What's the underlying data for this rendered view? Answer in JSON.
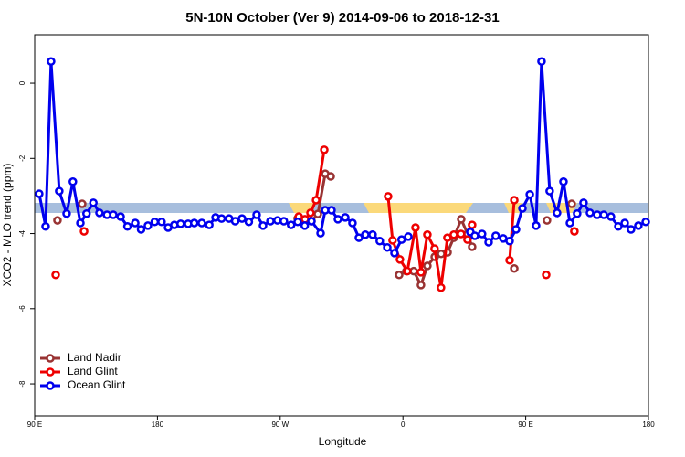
{
  "chart_data": {
    "type": "line",
    "title": "5N-10N October (Ver 9)   2014-09-06 to 2018-12-31",
    "x_label": "Longitude",
    "y_label": "XCO2 - MLO trend (ppm)",
    "xlim": [
      90,
      540
    ],
    "ylim": [
      -8.85,
      1.29
    ],
    "xticks": [
      {
        "value": 90,
        "label": "90 E"
      },
      180,
      {
        "value": 270,
        "label": "90 W"
      },
      {
        "value": 360,
        "label": "0"
      },
      {
        "value": 450,
        "label": "90 E"
      },
      {
        "value": 540,
        "label": "180"
      }
    ],
    "yticks": [
      -8,
      -6,
      -4,
      -2,
      0
    ],
    "legend": "bottomleft",
    "series": [
      {
        "name": "Land Nadir",
        "color": "#993333",
        "x": [
          106.7,
          null,
          124.8,
          null,
          282.8,
          287.5,
          292.9,
          297.6,
          303,
          307,
          null,
          357.2,
          362.5,
          367.9,
          373.2,
          377.9,
          383.3,
          388,
          392.7,
          397.3,
          402.7,
          407.4,
          410.7,
          null,
          441.6,
          null,
          465.6,
          null,
          483.7
        ],
        "values": [
          -3.65,
          null,
          -3.21,
          null,
          -3.6,
          -3.74,
          -3.67,
          -3.48,
          -2.41,
          -2.48,
          null,
          -5.1,
          -5.0,
          -5.0,
          -5.37,
          -4.86,
          -4.62,
          -4.54,
          -4.5,
          -4.11,
          -3.62,
          -4.01,
          -4.35,
          null,
          -4.93,
          null,
          -3.65,
          null,
          -3.21
        ]
      },
      {
        "name": "Land Glint",
        "color": "#ee0000",
        "x": [
          105.4,
          null,
          126.2,
          null,
          283.6,
          288.2,
          292.2,
          296.3,
          302.3,
          null,
          349.1,
          352.4,
          357.8,
          363.2,
          369.2,
          373.2,
          377.9,
          383.2,
          387.9,
          392.6,
          397.3,
          402.6,
          407.3,
          410.7,
          null,
          438.2,
          441.6,
          null,
          465,
          null,
          485.7
        ],
        "values": [
          -5.1,
          null,
          -3.94,
          null,
          -3.55,
          -3.62,
          -3.45,
          -3.11,
          -1.77,
          null,
          -3.01,
          -4.18,
          -4.69,
          -5.0,
          -3.84,
          -5.03,
          -4.03,
          -4.4,
          -5.44,
          -4.11,
          -4.03,
          -4.01,
          -4.16,
          -3.77,
          null,
          -4.71,
          -3.11,
          null,
          -5.1,
          null,
          -3.94
        ]
      },
      {
        "name": "Ocean Glint",
        "color": "#0000ee",
        "x": [
          93.3,
          98,
          102,
          108,
          113.4,
          118,
          123.5,
          128,
          133,
          137.5,
          143,
          147.6,
          153,
          158,
          163.7,
          168,
          173,
          178,
          183,
          187.8,
          192.4,
          197,
          202.5,
          207,
          212.5,
          218,
          222.6,
          227,
          232.5,
          237,
          242,
          247,
          252.7,
          257.4,
          262.8,
          268,
          272.7,
          278,
          282.8,
          288,
          292.9,
          299.6,
          303,
          307.6,
          312.3,
          317.7,
          323,
          327.7,
          332.4,
          337.7,
          343,
          348.5,
          353.8,
          359,
          363.9,
          null,
          409.4,
          412.7,
          418,
          422.8,
          428,
          433.5,
          438.2,
          442.9,
          447.6,
          453,
          457.6,
          461.6,
          467.6,
          473,
          477.7,
          482.4,
          487.7,
          492.4,
          497.1,
          502.5,
          507.2,
          512.5,
          517.9,
          522.6,
          527.2,
          532.6,
          538
        ],
        "values": [
          -2.94,
          -3.81,
          0.58,
          -2.87,
          -3.47,
          -2.62,
          -3.72,
          -3.47,
          -3.18,
          -3.45,
          -3.5,
          -3.5,
          -3.55,
          -3.81,
          -3.72,
          -3.89,
          -3.79,
          -3.69,
          -3.69,
          -3.84,
          -3.77,
          -3.74,
          -3.74,
          -3.72,
          -3.72,
          -3.77,
          -3.57,
          -3.6,
          -3.6,
          -3.67,
          -3.6,
          -3.69,
          -3.5,
          -3.79,
          -3.67,
          -3.65,
          -3.67,
          -3.77,
          -3.69,
          -3.79,
          -3.67,
          -3.99,
          -3.38,
          -3.38,
          -3.62,
          -3.57,
          -3.72,
          -4.11,
          -4.03,
          -4.03,
          -4.2,
          -4.37,
          -4.52,
          -4.16,
          -4.08,
          null,
          -3.96,
          -4.06,
          -4.01,
          -4.23,
          -4.06,
          -4.13,
          -4.2,
          -3.89,
          -3.33,
          -2.96,
          -3.79,
          0.58,
          -2.87,
          -3.45,
          -2.62,
          -3.72,
          -3.47,
          -3.18,
          -3.45,
          -3.5,
          -3.5,
          -3.55,
          -3.81,
          -3.72,
          -3.89,
          -3.79,
          -3.69
        ]
      }
    ]
  }
}
